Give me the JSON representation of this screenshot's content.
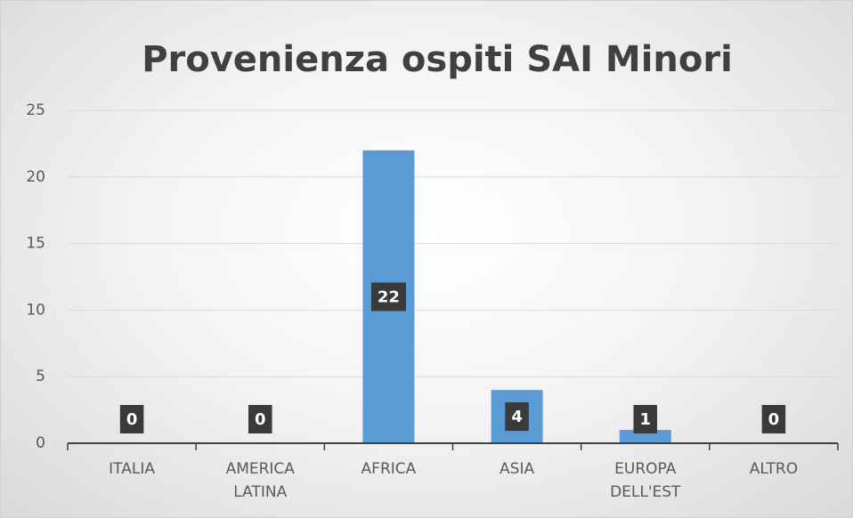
{
  "chart_data": {
    "type": "bar",
    "title": "Provenienza ospiti SAI Minori",
    "categories": [
      "ITALIA",
      "AMERICA\nLATINA",
      "AFRICA",
      "ASIA",
      "EUROPA\nDELL'EST",
      "ALTRO"
    ],
    "values": [
      0,
      0,
      22,
      4,
      1,
      0
    ],
    "color": "#5b9bd5",
    "ylim": [
      0,
      25
    ],
    "yticks": [
      0,
      5,
      10,
      15,
      20,
      25
    ],
    "grid": true
  }
}
